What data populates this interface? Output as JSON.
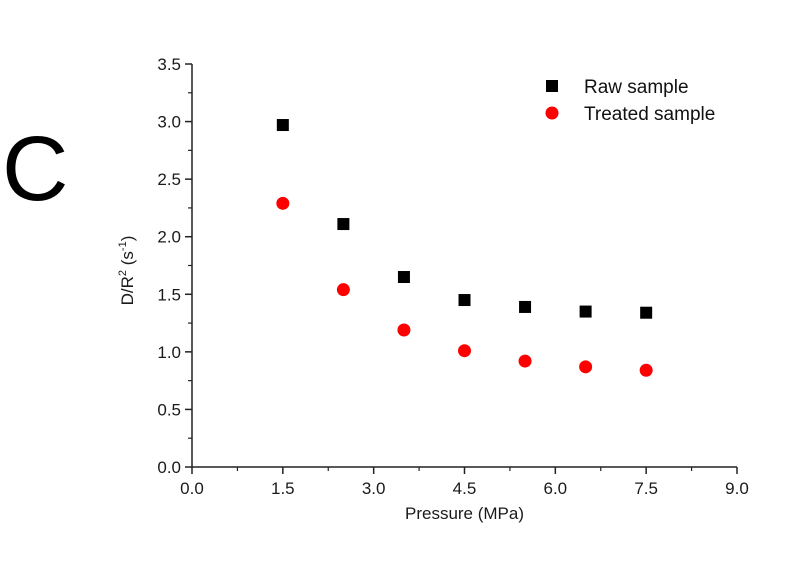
{
  "panel_label": "C",
  "chart_data": {
    "type": "scatter",
    "title": "",
    "xlabel": "Pressure (MPa)",
    "ylabel": {
      "base": "D/R",
      "sup": "2",
      "unit_open": " (s",
      "unit_sup": "-1",
      "unit_close": ")"
    },
    "xlim": [
      0,
      9
    ],
    "ylim": [
      0,
      3.5
    ],
    "xticks": [
      "0.0",
      "1.5",
      "3.0",
      "4.5",
      "6.0",
      "7.5",
      "9.0"
    ],
    "xtick_values": [
      0,
      1.5,
      3.0,
      4.5,
      6.0,
      7.5,
      9.0
    ],
    "yticks": [
      "0.0",
      "0.5",
      "1.0",
      "1.5",
      "2.0",
      "2.5",
      "3.0",
      "3.5"
    ],
    "ytick_values": [
      0,
      0.5,
      1.0,
      1.5,
      2.0,
      2.5,
      3.0,
      3.5
    ],
    "grid": false,
    "legend_position": "top-right",
    "x": [
      1.5,
      2.5,
      3.5,
      4.5,
      5.5,
      6.5,
      7.5
    ],
    "series": [
      {
        "name": "Raw sample",
        "marker": "square",
        "color": "#000000",
        "values": [
          2.97,
          2.11,
          1.65,
          1.45,
          1.39,
          1.35,
          1.34
        ]
      },
      {
        "name": "Treated sample",
        "marker": "circle",
        "color": "#ff0000",
        "values": [
          2.29,
          1.54,
          1.19,
          1.01,
          0.92,
          0.87,
          0.84
        ]
      }
    ]
  }
}
